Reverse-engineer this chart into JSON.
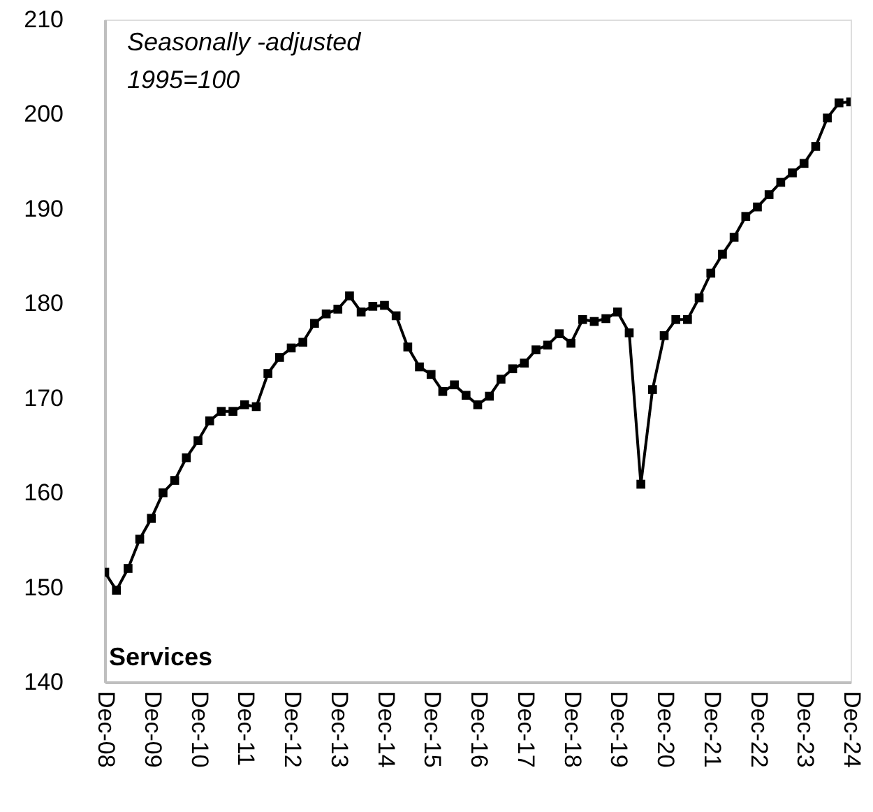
{
  "chart_data": {
    "type": "line",
    "title": "Services",
    "annotations": [
      "Seasonally -adjusted",
      "1995=100"
    ],
    "categories": [
      "Dec-08",
      null,
      null,
      null,
      "Dec-09",
      null,
      null,
      null,
      "Dec-10",
      null,
      null,
      null,
      "Dec-11",
      null,
      null,
      null,
      "Dec-12",
      null,
      null,
      null,
      "Dec-13",
      null,
      null,
      null,
      "Dec-14",
      null,
      null,
      null,
      "Dec-15",
      null,
      null,
      null,
      "Dec-16",
      null,
      null,
      null,
      "Dec-17",
      null,
      null,
      null,
      "Dec-18",
      null,
      null,
      null,
      "Dec-19",
      null,
      null,
      null,
      "Dec-20",
      null,
      null,
      null,
      "Dec-21",
      null,
      null,
      null,
      "Dec-22",
      null,
      null,
      null,
      "Dec-23",
      null,
      null,
      null,
      "Dec-24"
    ],
    "series": [
      {
        "color": "#000000",
        "values": [
          151.6,
          149.7,
          152.0,
          155.1,
          157.3,
          160.0,
          161.3,
          163.7,
          165.5,
          167.6,
          168.6,
          168.6,
          169.3,
          169.1,
          172.6,
          174.3,
          175.3,
          175.9,
          177.9,
          178.9,
          179.4,
          180.8,
          179.1,
          179.7,
          179.8,
          178.7,
          175.4,
          173.3,
          172.5,
          170.7,
          171.4,
          170.3,
          169.3,
          170.2,
          172.0,
          173.1,
          173.7,
          175.1,
          175.6,
          176.8,
          175.8,
          178.3,
          178.1,
          178.4,
          179.1,
          176.9,
          160.9,
          170.9,
          176.6,
          178.3,
          178.3,
          180.6,
          183.2,
          185.2,
          187.0,
          189.2,
          190.2,
          191.5,
          192.8,
          193.8,
          194.8,
          196.6,
          199.6,
          201.2,
          201.3
        ]
      }
    ],
    "ylim": [
      140,
      210
    ],
    "yticks": [
      140,
      150,
      160,
      170,
      180,
      190,
      200,
      210
    ],
    "grid": false,
    "marker": "square",
    "line_style": "solid"
  }
}
